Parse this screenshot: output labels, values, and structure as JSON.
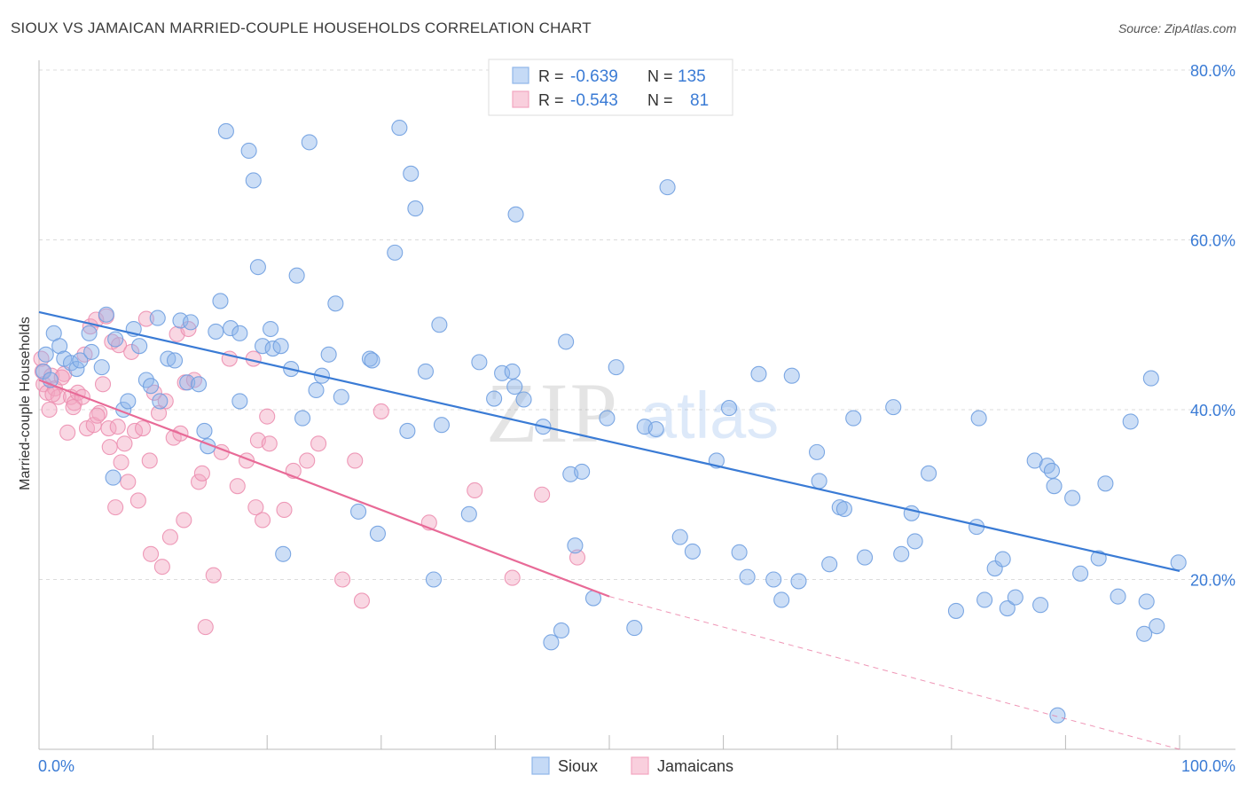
{
  "header": {
    "title": "SIOUX VS JAMAICAN MARRIED-COUPLE HOUSEHOLDS CORRELATION CHART",
    "source": "Source: ZipAtlas.com"
  },
  "legend_top": {
    "rows": [
      {
        "r_label": "R =",
        "r_value": "-0.639",
        "n_label": "N =",
        "n_value": "135"
      },
      {
        "r_label": "R =",
        "r_value": "-0.543",
        "n_label": "N =",
        "n_value": "81"
      }
    ]
  },
  "watermark": {
    "zip": "ZIP",
    "atlas": "atlas"
  },
  "colors": {
    "sioux": "#8fb6ea",
    "sioux_line": "#3a7bd5",
    "jamaicans": "#f2a6c0",
    "jamaicans_line": "#e86a97",
    "tick_text": "#3a7bd5"
  },
  "chart_data": {
    "type": "scatter",
    "title": "SIOUX VS JAMAICAN MARRIED-COUPLE HOUSEHOLDS CORRELATION CHART",
    "xlabel": "",
    "ylabel": "Married-couple Households",
    "xlim": [
      0,
      100
    ],
    "ylim": [
      0,
      82
    ],
    "x_tick_labels": [
      "0.0%",
      "100.0%"
    ],
    "y_ticks": [
      20,
      40,
      60,
      80
    ],
    "y_tick_labels": [
      "20.0%",
      "40.0%",
      "60.0%",
      "80.0%"
    ],
    "grid": true,
    "legend_position": "bottom",
    "series": [
      {
        "name": "Sioux",
        "r": -0.639,
        "n": 135,
        "trend": {
          "x0": 0,
          "y0": 51.5,
          "x1": 100,
          "y1": 21.0
        },
        "points": [
          [
            0.4,
            44.5
          ],
          [
            0.6,
            46.5
          ],
          [
            1.0,
            43.5
          ],
          [
            1.3,
            49.0
          ],
          [
            1.8,
            47.5
          ],
          [
            2.2,
            46.0
          ],
          [
            2.8,
            45.5
          ],
          [
            3.3,
            44.8
          ],
          [
            3.6,
            45.8
          ],
          [
            4.4,
            49.0
          ],
          [
            4.6,
            46.8
          ],
          [
            5.5,
            45.0
          ],
          [
            5.9,
            51.2
          ],
          [
            6.5,
            32.0
          ],
          [
            6.7,
            48.3
          ],
          [
            7.4,
            40.0
          ],
          [
            7.8,
            41.0
          ],
          [
            8.3,
            49.5
          ],
          [
            8.8,
            47.5
          ],
          [
            9.4,
            43.5
          ],
          [
            9.8,
            42.8
          ],
          [
            10.4,
            50.8
          ],
          [
            10.6,
            41.0
          ],
          [
            11.3,
            46.0
          ],
          [
            11.9,
            45.8
          ],
          [
            12.4,
            50.5
          ],
          [
            13.0,
            43.2
          ],
          [
            13.3,
            50.3
          ],
          [
            14.0,
            43.0
          ],
          [
            14.5,
            37.5
          ],
          [
            14.8,
            35.7
          ],
          [
            15.5,
            49.2
          ],
          [
            15.9,
            52.8
          ],
          [
            16.4,
            72.8
          ],
          [
            16.8,
            49.6
          ],
          [
            17.6,
            49.0
          ],
          [
            17.6,
            41.0
          ],
          [
            18.4,
            70.5
          ],
          [
            18.8,
            67.0
          ],
          [
            19.2,
            56.8
          ],
          [
            19.6,
            47.5
          ],
          [
            20.3,
            49.5
          ],
          [
            20.5,
            47.2
          ],
          [
            21.2,
            47.5
          ],
          [
            21.4,
            23.0
          ],
          [
            22.1,
            44.8
          ],
          [
            22.6,
            55.8
          ],
          [
            23.1,
            39.0
          ],
          [
            23.7,
            71.5
          ],
          [
            24.3,
            42.3
          ],
          [
            24.8,
            44.0
          ],
          [
            25.4,
            46.5
          ],
          [
            26.0,
            52.5
          ],
          [
            26.5,
            41.5
          ],
          [
            28.0,
            28.0
          ],
          [
            29.0,
            46.0
          ],
          [
            29.2,
            45.8
          ],
          [
            29.7,
            25.4
          ],
          [
            31.2,
            58.5
          ],
          [
            31.6,
            73.2
          ],
          [
            32.3,
            37.5
          ],
          [
            32.6,
            67.8
          ],
          [
            33.0,
            63.7
          ],
          [
            33.9,
            44.5
          ],
          [
            34.6,
            20.0
          ],
          [
            35.1,
            50.0
          ],
          [
            35.3,
            38.2
          ],
          [
            37.7,
            27.7
          ],
          [
            38.6,
            45.6
          ],
          [
            39.9,
            41.3
          ],
          [
            40.6,
            44.3
          ],
          [
            41.5,
            44.5
          ],
          [
            41.7,
            42.7
          ],
          [
            41.8,
            63.0
          ],
          [
            42.5,
            41.2
          ],
          [
            44.2,
            38.0
          ],
          [
            44.9,
            12.6
          ],
          [
            45.8,
            14.0
          ],
          [
            46.2,
            48.0
          ],
          [
            46.6,
            32.4
          ],
          [
            47.0,
            24.0
          ],
          [
            47.6,
            32.7
          ],
          [
            48.6,
            17.8
          ],
          [
            49.8,
            39.0
          ],
          [
            50.6,
            45.0
          ],
          [
            52.2,
            14.3
          ],
          [
            53.1,
            38.0
          ],
          [
            54.1,
            37.7
          ],
          [
            55.1,
            66.2
          ],
          [
            56.2,
            25.0
          ],
          [
            57.3,
            23.3
          ],
          [
            59.4,
            34.0
          ],
          [
            60.5,
            40.2
          ],
          [
            61.4,
            23.2
          ],
          [
            62.1,
            20.3
          ],
          [
            63.1,
            44.2
          ],
          [
            64.4,
            20.0
          ],
          [
            65.1,
            17.6
          ],
          [
            66.0,
            44.0
          ],
          [
            66.6,
            19.8
          ],
          [
            68.2,
            35.0
          ],
          [
            68.4,
            31.6
          ],
          [
            69.3,
            21.8
          ],
          [
            70.2,
            28.5
          ],
          [
            70.6,
            28.3
          ],
          [
            71.4,
            39.0
          ],
          [
            72.4,
            22.6
          ],
          [
            74.9,
            40.3
          ],
          [
            75.6,
            23.0
          ],
          [
            76.5,
            27.8
          ],
          [
            76.8,
            24.5
          ],
          [
            78.0,
            32.5
          ],
          [
            80.4,
            16.3
          ],
          [
            82.2,
            26.2
          ],
          [
            82.4,
            39.0
          ],
          [
            82.9,
            17.6
          ],
          [
            83.8,
            21.3
          ],
          [
            84.5,
            22.4
          ],
          [
            84.9,
            16.6
          ],
          [
            85.6,
            17.9
          ],
          [
            87.3,
            34.0
          ],
          [
            87.8,
            17.0
          ],
          [
            88.4,
            33.4
          ],
          [
            88.8,
            32.8
          ],
          [
            89.0,
            31.0
          ],
          [
            89.3,
            4.0
          ],
          [
            90.6,
            29.6
          ],
          [
            91.3,
            20.7
          ],
          [
            92.9,
            22.5
          ],
          [
            93.5,
            31.3
          ],
          [
            94.6,
            18.0
          ],
          [
            95.7,
            38.6
          ],
          [
            96.9,
            13.6
          ],
          [
            97.1,
            17.4
          ],
          [
            97.5,
            43.7
          ],
          [
            98.0,
            14.5
          ],
          [
            99.9,
            22.0
          ]
        ]
      },
      {
        "name": "Jamaicans",
        "r": -0.543,
        "n": 81,
        "trend": {
          "x0": 0,
          "y0": 43.5,
          "x1": 50,
          "y1": 18.0
        },
        "trend_dashed_extension": {
          "x0": 50,
          "y0": 18.0,
          "x1": 100,
          "y1": 0
        },
        "points": [
          [
            0.2,
            46.0
          ],
          [
            0.3,
            44.5
          ],
          [
            0.4,
            43.0
          ],
          [
            0.7,
            42.0
          ],
          [
            0.9,
            40.0
          ],
          [
            1.1,
            44.0
          ],
          [
            1.4,
            42.5
          ],
          [
            1.7,
            41.5
          ],
          [
            2.2,
            44.2
          ],
          [
            2.5,
            37.3
          ],
          [
            2.8,
            41.5
          ],
          [
            3.1,
            40.8
          ],
          [
            3.4,
            42.0
          ],
          [
            3.8,
            41.5
          ],
          [
            4.0,
            46.5
          ],
          [
            4.2,
            37.8
          ],
          [
            4.5,
            49.8
          ],
          [
            4.8,
            38.2
          ],
          [
            5.0,
            50.6
          ],
          [
            5.3,
            39.6
          ],
          [
            5.6,
            43.0
          ],
          [
            5.9,
            51.0
          ],
          [
            6.1,
            37.8
          ],
          [
            6.4,
            48.0
          ],
          [
            6.7,
            28.5
          ],
          [
            6.9,
            38.0
          ],
          [
            7.0,
            47.6
          ],
          [
            7.2,
            33.8
          ],
          [
            7.5,
            36.0
          ],
          [
            7.8,
            31.5
          ],
          [
            8.1,
            46.8
          ],
          [
            8.4,
            37.5
          ],
          [
            8.7,
            29.3
          ],
          [
            9.1,
            37.8
          ],
          [
            9.4,
            50.7
          ],
          [
            9.7,
            34.0
          ],
          [
            10.1,
            42.0
          ],
          [
            10.5,
            39.6
          ],
          [
            10.8,
            21.5
          ],
          [
            11.1,
            41.0
          ],
          [
            11.5,
            25.0
          ],
          [
            11.8,
            36.7
          ],
          [
            12.1,
            48.9
          ],
          [
            12.4,
            37.2
          ],
          [
            12.8,
            43.2
          ],
          [
            13.1,
            49.5
          ],
          [
            13.6,
            43.5
          ],
          [
            14.0,
            31.5
          ],
          [
            14.3,
            32.5
          ],
          [
            14.6,
            14.4
          ],
          [
            15.3,
            20.5
          ],
          [
            16.0,
            35.0
          ],
          [
            16.7,
            46.0
          ],
          [
            17.4,
            31.0
          ],
          [
            18.2,
            34.0
          ],
          [
            18.8,
            46.0
          ],
          [
            19.2,
            36.4
          ],
          [
            19.6,
            27.0
          ],
          [
            20.0,
            39.2
          ],
          [
            20.2,
            36.0
          ],
          [
            21.5,
            28.2
          ],
          [
            22.3,
            32.8
          ],
          [
            23.5,
            34.0
          ],
          [
            24.5,
            36.0
          ],
          [
            26.6,
            20.0
          ],
          [
            27.7,
            34.0
          ],
          [
            28.3,
            17.5
          ],
          [
            30.0,
            39.8
          ],
          [
            34.2,
            26.7
          ],
          [
            38.2,
            30.5
          ],
          [
            41.5,
            20.2
          ],
          [
            44.1,
            30.0
          ],
          [
            47.2,
            22.6
          ],
          [
            5.1,
            39.3
          ],
          [
            3.0,
            40.3
          ],
          [
            9.8,
            23.0
          ],
          [
            12.7,
            27.0
          ],
          [
            19.0,
            28.5
          ],
          [
            1.2,
            41.8
          ],
          [
            6.2,
            35.6
          ],
          [
            2.0,
            43.8
          ]
        ]
      }
    ]
  },
  "legend_bottom": {
    "items": [
      {
        "label": "Sioux"
      },
      {
        "label": "Jamaicans"
      }
    ]
  }
}
